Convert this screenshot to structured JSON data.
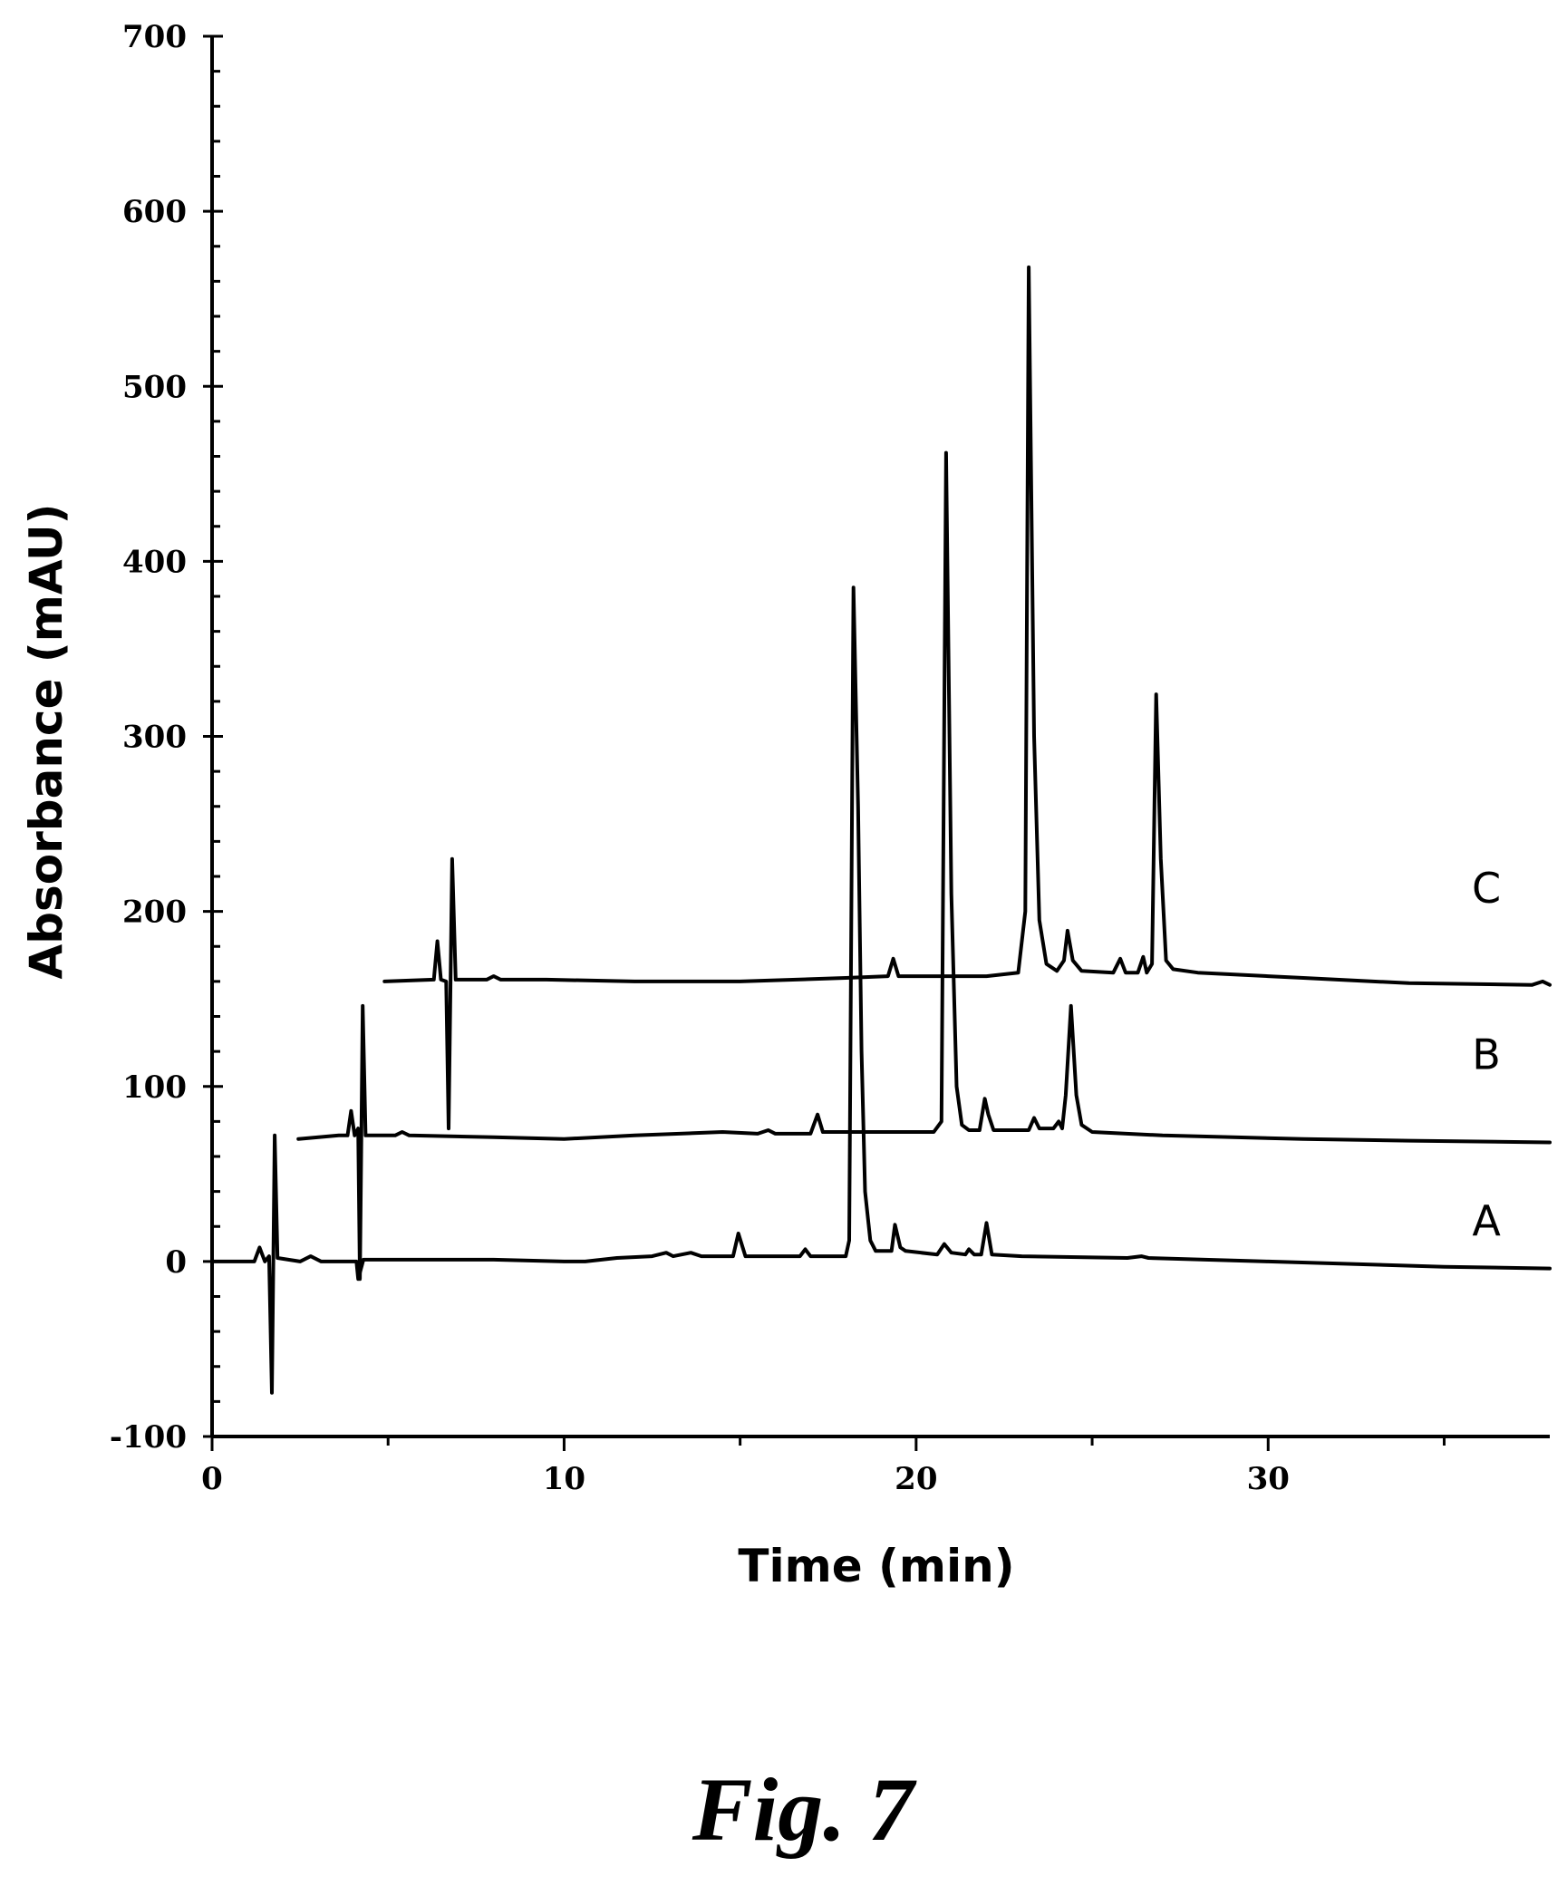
{
  "chart_data": {
    "type": "line",
    "xlabel": "Time (min)",
    "ylabel": "Absorbance (mAU)",
    "xlim": [
      0,
      38
    ],
    "ylim": [
      -100,
      700
    ],
    "x_ticks": [
      0,
      10,
      20,
      30
    ],
    "x_minor_step": 5,
    "y_ticks": [
      -100,
      0,
      100,
      200,
      300,
      400,
      500,
      600,
      700
    ],
    "y_minor_step": 20,
    "grid": false,
    "line_color": "#000000",
    "series": [
      {
        "name": "A",
        "label_pos": [
          36.2,
          15
        ],
        "points": [
          [
            0,
            0
          ],
          [
            1.2,
            0
          ],
          [
            1.35,
            8
          ],
          [
            1.5,
            0
          ],
          [
            1.62,
            3
          ],
          [
            1.7,
            -75
          ],
          [
            1.78,
            72
          ],
          [
            1.86,
            2
          ],
          [
            2.5,
            0
          ],
          [
            2.8,
            3
          ],
          [
            3.1,
            0
          ],
          [
            4.1,
            0
          ],
          [
            4.15,
            -10
          ],
          [
            4.3,
            1
          ],
          [
            8,
            1
          ],
          [
            10,
            0
          ],
          [
            10.6,
            0
          ],
          [
            11.5,
            2
          ],
          [
            12.5,
            3
          ],
          [
            12.9,
            5
          ],
          [
            13.1,
            3
          ],
          [
            13.6,
            5
          ],
          [
            13.9,
            3
          ],
          [
            14.8,
            3
          ],
          [
            14.95,
            16
          ],
          [
            15.15,
            3
          ],
          [
            16.7,
            3
          ],
          [
            16.85,
            7
          ],
          [
            17,
            3
          ],
          [
            18.0,
            3
          ],
          [
            18.1,
            12
          ],
          [
            18.22,
            385
          ],
          [
            18.35,
            260
          ],
          [
            18.45,
            120
          ],
          [
            18.55,
            40
          ],
          [
            18.7,
            12
          ],
          [
            18.85,
            6
          ],
          [
            19.3,
            6
          ],
          [
            19.4,
            21
          ],
          [
            19.55,
            8
          ],
          [
            19.7,
            6
          ],
          [
            20.6,
            4
          ],
          [
            20.8,
            10
          ],
          [
            21.0,
            5
          ],
          [
            21.4,
            4
          ],
          [
            21.5,
            7
          ],
          [
            21.65,
            4
          ],
          [
            21.85,
            4
          ],
          [
            22.0,
            22
          ],
          [
            22.15,
            4
          ],
          [
            23,
            3
          ],
          [
            26,
            2
          ],
          [
            26.4,
            3
          ],
          [
            26.6,
            2
          ],
          [
            30,
            0
          ],
          [
            35,
            -3
          ],
          [
            38,
            -4
          ]
        ]
      },
      {
        "name": "B",
        "label_pos": [
          36.2,
          110
        ],
        "points": [
          [
            2.45,
            70
          ],
          [
            3.6,
            72
          ],
          [
            3.85,
            72
          ],
          [
            3.95,
            86
          ],
          [
            4.05,
            72
          ],
          [
            4.15,
            76
          ],
          [
            4.2,
            -10
          ],
          [
            4.28,
            146
          ],
          [
            4.36,
            72
          ],
          [
            5.2,
            72
          ],
          [
            5.4,
            74
          ],
          [
            5.6,
            72
          ],
          [
            8,
            71
          ],
          [
            10,
            70
          ],
          [
            12,
            72
          ],
          [
            14.5,
            74
          ],
          [
            15.5,
            73
          ],
          [
            15.8,
            75
          ],
          [
            16.0,
            73
          ],
          [
            17.0,
            73
          ],
          [
            17.2,
            84
          ],
          [
            17.35,
            74
          ],
          [
            18.1,
            74
          ],
          [
            18.22,
            74
          ],
          [
            19.5,
            74
          ],
          [
            20.5,
            74
          ],
          [
            20.72,
            80
          ],
          [
            20.85,
            462
          ],
          [
            21.0,
            210
          ],
          [
            21.15,
            100
          ],
          [
            21.3,
            78
          ],
          [
            21.5,
            75
          ],
          [
            21.8,
            75
          ],
          [
            21.95,
            93
          ],
          [
            22.05,
            84
          ],
          [
            22.2,
            75
          ],
          [
            23.2,
            75
          ],
          [
            23.35,
            82
          ],
          [
            23.5,
            76
          ],
          [
            23.9,
            76
          ],
          [
            24.05,
            80
          ],
          [
            24.15,
            76
          ],
          [
            24.25,
            95
          ],
          [
            24.4,
            146
          ],
          [
            24.55,
            95
          ],
          [
            24.7,
            78
          ],
          [
            25,
            74
          ],
          [
            27,
            72
          ],
          [
            29,
            71
          ],
          [
            31,
            70
          ],
          [
            34,
            69
          ],
          [
            38,
            68
          ]
        ]
      },
      {
        "name": "C",
        "label_pos": [
          36.2,
          205
        ],
        "points": [
          [
            4.9,
            160
          ],
          [
            6.3,
            161
          ],
          [
            6.4,
            183
          ],
          [
            6.5,
            161
          ],
          [
            6.65,
            160
          ],
          [
            6.72,
            76
          ],
          [
            6.82,
            230
          ],
          [
            6.92,
            161
          ],
          [
            7.8,
            161
          ],
          [
            8,
            163
          ],
          [
            8.2,
            161
          ],
          [
            9.5,
            161
          ],
          [
            12,
            160
          ],
          [
            15,
            160
          ],
          [
            18,
            162
          ],
          [
            19.2,
            163
          ],
          [
            19.35,
            173
          ],
          [
            19.5,
            163
          ],
          [
            20.5,
            163
          ],
          [
            22,
            163
          ],
          [
            22.9,
            165
          ],
          [
            23.1,
            200
          ],
          [
            23.2,
            568
          ],
          [
            23.35,
            300
          ],
          [
            23.5,
            195
          ],
          [
            23.7,
            170
          ],
          [
            24.0,
            166
          ],
          [
            24.2,
            172
          ],
          [
            24.3,
            189
          ],
          [
            24.45,
            172
          ],
          [
            24.7,
            166
          ],
          [
            25.6,
            165
          ],
          [
            25.8,
            173
          ],
          [
            25.95,
            165
          ],
          [
            26.3,
            165
          ],
          [
            26.45,
            174
          ],
          [
            26.55,
            165
          ],
          [
            26.7,
            170
          ],
          [
            26.82,
            324
          ],
          [
            26.95,
            230
          ],
          [
            27.1,
            172
          ],
          [
            27.3,
            167
          ],
          [
            28,
            165
          ],
          [
            30,
            163
          ],
          [
            31,
            162
          ],
          [
            34,
            159
          ],
          [
            37.5,
            158
          ],
          [
            37.8,
            160
          ],
          [
            38,
            158
          ]
        ]
      }
    ]
  },
  "caption": "Fig. 7"
}
